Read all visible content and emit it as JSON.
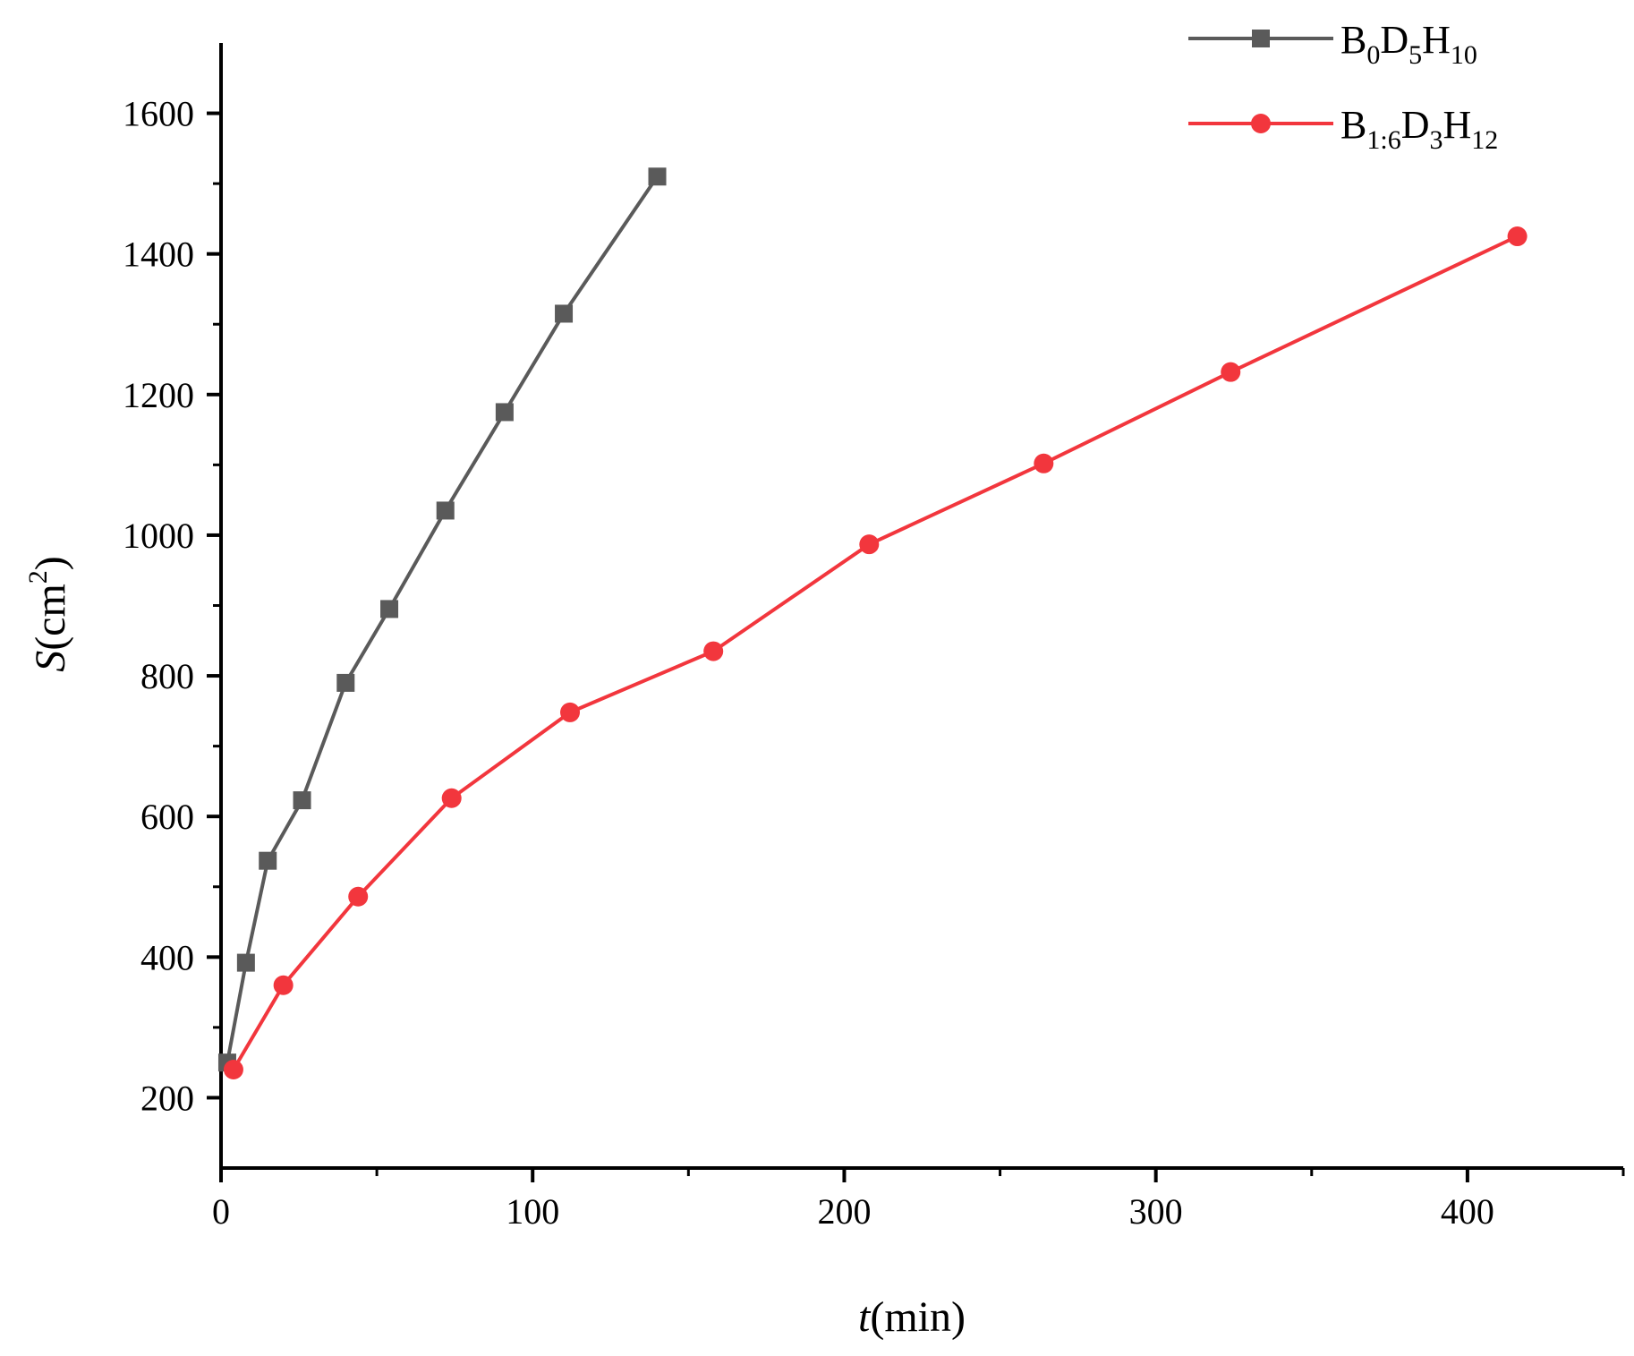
{
  "chart_data": {
    "type": "line",
    "xlabel_var": "t",
    "xlabel_unit": "(min)",
    "ylabel_var": "S",
    "ylabel_unit": "(cm",
    "ylabel_sup": "2",
    "ylabel_close": ")",
    "xlim": [
      0,
      450
    ],
    "ylim": [
      100,
      1700
    ],
    "x_ticks": [
      0,
      100,
      200,
      300,
      400
    ],
    "x_tick_labels": [
      "0",
      "100",
      "200",
      "300",
      "400"
    ],
    "x_minor_ticks": [
      50,
      150,
      250,
      350,
      450
    ],
    "y_ticks": [
      200,
      400,
      600,
      800,
      1000,
      1200,
      1400,
      1600
    ],
    "y_tick_labels": [
      "200",
      "400",
      "600",
      "800",
      "1000",
      "1200",
      "1400",
      "1600"
    ],
    "y_minor_ticks": [
      300,
      500,
      700,
      900,
      1100,
      1300,
      1500
    ],
    "legend_position": "top-right",
    "grid": false,
    "series": [
      {
        "name_parts": [
          {
            "text": "B",
            "sub": false
          },
          {
            "text": "0",
            "sub": true
          },
          {
            "text": "D",
            "sub": false
          },
          {
            "text": "5",
            "sub": true
          },
          {
            "text": "H",
            "sub": false
          },
          {
            "text": "10",
            "sub": true
          }
        ],
        "color": "#5a5a5a",
        "marker": "square",
        "x": [
          2,
          8,
          15,
          26,
          40,
          54,
          72,
          91,
          110,
          140
        ],
        "y": [
          250,
          392,
          537,
          623,
          790,
          895,
          1035,
          1175,
          1315,
          1510
        ]
      },
      {
        "name_parts": [
          {
            "text": "B",
            "sub": false
          },
          {
            "text": "1:6",
            "sub": true
          },
          {
            "text": "D",
            "sub": false
          },
          {
            "text": "3",
            "sub": true
          },
          {
            "text": "H",
            "sub": false
          },
          {
            "text": "12",
            "sub": true
          }
        ],
        "color": "#f2363d",
        "marker": "circle",
        "x": [
          4,
          20,
          44,
          74,
          112,
          158,
          208,
          264,
          324,
          416
        ],
        "y": [
          240,
          360,
          486,
          626,
          748,
          835,
          987,
          1102,
          1232,
          1425
        ]
      }
    ]
  }
}
